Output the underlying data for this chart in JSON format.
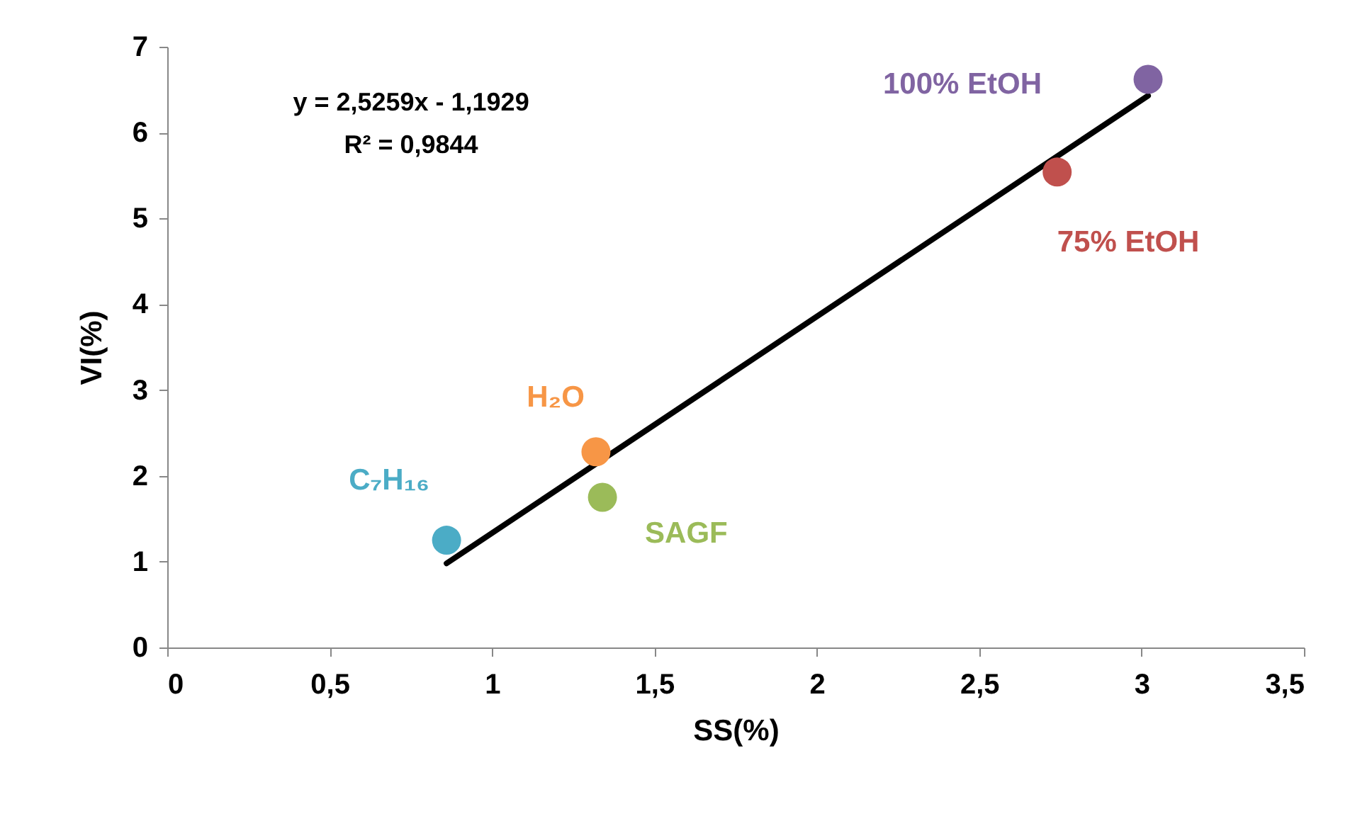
{
  "chart_data": {
    "type": "scatter",
    "xlabel": "SS(%)",
    "ylabel": "VI(%)",
    "xlim": [
      0,
      3.5
    ],
    "ylim": [
      0,
      7
    ],
    "xticks": [
      0,
      {
        "value": 0.5,
        "label": "0,5"
      },
      1,
      {
        "value": 1.5,
        "label": "1,5"
      },
      2,
      {
        "value": 2.5,
        "label": "2,5"
      },
      3,
      {
        "value": 3.5,
        "label": "3,5"
      }
    ],
    "yticks": [
      0,
      1,
      2,
      3,
      4,
      5,
      6,
      7
    ],
    "grid": false,
    "marker": "circle",
    "series": [
      {
        "type": "line",
        "marker": "none",
        "color": "#000000",
        "x": [
          0.86,
          3.02
        ],
        "values": [
          0.98,
          6.43
        ]
      },
      {
        "name": "C₇H₁₆",
        "color": "#4bacc6",
        "x": [
          0.86
        ],
        "values": [
          1.25
        ]
      },
      {
        "name": "H₂O",
        "color": "#f79646",
        "x": [
          1.32
        ],
        "values": [
          2.28
        ]
      },
      {
        "name": "SAGF",
        "color": "#9bbb59",
        "x": [
          1.34
        ],
        "values": [
          1.75
        ]
      },
      {
        "name": "75% EtOH",
        "color": "#c0504d",
        "x": [
          2.74
        ],
        "values": [
          5.54
        ]
      },
      {
        "name": "100% EtOH",
        "color": "#8064a2",
        "x": [
          3.02
        ],
        "values": [
          6.62
        ]
      }
    ],
    "annotations": [
      "y = 2,5259x - 1,1929",
      "R² = 0,9844"
    ]
  }
}
